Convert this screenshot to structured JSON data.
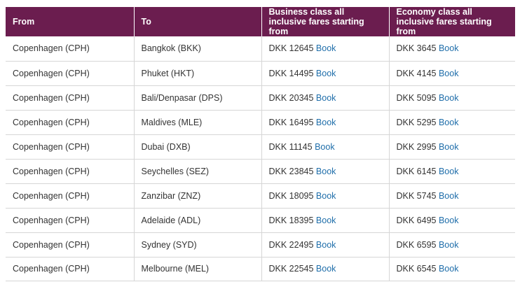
{
  "table": {
    "headers": [
      "From",
      "To",
      "Business class all inclusive fares starting from",
      "Economy class all inclusive fares starting from"
    ],
    "book_label": "Book",
    "rows": [
      {
        "from": "Copenhagen (CPH)",
        "to": "Bangkok (BKK)",
        "business": "DKK 12645",
        "economy": "DKK 3645"
      },
      {
        "from": "Copenhagen (CPH)",
        "to": "Phuket (HKT)",
        "business": "DKK 14495",
        "economy": "DKK 4145"
      },
      {
        "from": "Copenhagen (CPH)",
        "to": "Bali/Denpasar (DPS)",
        "business": "DKK 20345",
        "economy": "DKK 5095"
      },
      {
        "from": "Copenhagen (CPH)",
        "to": "Maldives (MLE)",
        "business": "DKK 16495",
        "economy": "DKK 5295"
      },
      {
        "from": "Copenhagen (CPH)",
        "to": "Dubai (DXB)",
        "business": "DKK 11145",
        "economy": "DKK 2995"
      },
      {
        "from": "Copenhagen (CPH)",
        "to": "Seychelles (SEZ)",
        "business": "DKK 23845",
        "economy": "DKK 6145"
      },
      {
        "from": "Copenhagen (CPH)",
        "to": "Zanzibar (ZNZ)",
        "business": "DKK 18095",
        "economy": "DKK 5745"
      },
      {
        "from": "Copenhagen (CPH)",
        "to": "Adelaide (ADL)",
        "business": "DKK 18395",
        "economy": "DKK 6495"
      },
      {
        "from": "Copenhagen (CPH)",
        "to": "Sydney (SYD)",
        "business": "DKK 22495",
        "economy": "DKK 6595"
      },
      {
        "from": "Copenhagen (CPH)",
        "to": "Melbourne (MEL)",
        "business": "DKK 22545",
        "economy": "DKK 6545"
      }
    ]
  },
  "colors": {
    "header_bg": "#6b1d4f",
    "link": "#1f6eaa"
  }
}
